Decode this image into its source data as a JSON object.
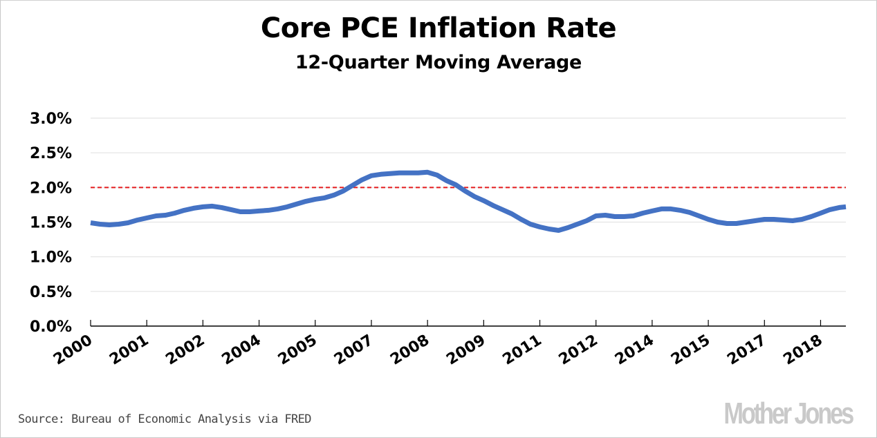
{
  "chart_data": {
    "type": "line",
    "title": "Core PCE Inflation Rate",
    "subtitle": "12-Quarter Moving Average",
    "xlabel": "",
    "ylabel": "",
    "ylim": [
      0,
      3.0
    ],
    "y_ticks": [
      0.0,
      0.5,
      1.0,
      1.5,
      2.0,
      2.5,
      3.0
    ],
    "y_tick_labels": [
      "0.0%",
      "0.5%",
      "1.0%",
      "1.5%",
      "2.0%",
      "2.5%",
      "3.0%"
    ],
    "x_tick_labels": [
      "2000",
      "2001",
      "2002",
      "2004",
      "2005",
      "2007",
      "2008",
      "2009",
      "2011",
      "2012",
      "2014",
      "2015",
      "2017",
      "2018"
    ],
    "x_tick_every_n_quarters": 6,
    "x_unit": "quarter index",
    "grid": true,
    "reference_line": {
      "value": 2.0,
      "style": "dashed",
      "color": "#e31a1c"
    },
    "series": [
      {
        "name": "Core PCE inflation, 12-quarter moving average (%)",
        "color": "#4472c4",
        "x": [
          0,
          1,
          2,
          3,
          4,
          5,
          6,
          7,
          8,
          9,
          10,
          11,
          12,
          13,
          14,
          15,
          16,
          17,
          18,
          19,
          20,
          21,
          22,
          23,
          24,
          25,
          26,
          27,
          28,
          29,
          30,
          31,
          32,
          33,
          34,
          35,
          36,
          37,
          38,
          39,
          40,
          41,
          42,
          43,
          44,
          45,
          46,
          47,
          48,
          49,
          50,
          51,
          52,
          53,
          54,
          55,
          56,
          57,
          58,
          59,
          60,
          61,
          62,
          63,
          64,
          65,
          66,
          67,
          68,
          69,
          70,
          71,
          72,
          73,
          74,
          75,
          76,
          77,
          78,
          79,
          80,
          80.7
        ],
        "values": [
          1.49,
          1.47,
          1.46,
          1.47,
          1.49,
          1.53,
          1.56,
          1.59,
          1.6,
          1.63,
          1.67,
          1.7,
          1.72,
          1.73,
          1.71,
          1.68,
          1.65,
          1.65,
          1.66,
          1.67,
          1.69,
          1.72,
          1.76,
          1.8,
          1.83,
          1.85,
          1.89,
          1.95,
          2.03,
          2.11,
          2.17,
          2.19,
          2.2,
          2.21,
          2.21,
          2.21,
          2.22,
          2.18,
          2.1,
          2.04,
          1.95,
          1.87,
          1.81,
          1.74,
          1.68,
          1.62,
          1.54,
          1.47,
          1.43,
          1.4,
          1.38,
          1.42,
          1.47,
          1.52,
          1.59,
          1.6,
          1.58,
          1.58,
          1.59,
          1.63,
          1.66,
          1.69,
          1.69,
          1.67,
          1.64,
          1.59,
          1.54,
          1.5,
          1.48,
          1.48,
          1.5,
          1.52,
          1.54,
          1.54,
          1.53,
          1.52,
          1.54,
          1.58,
          1.63,
          1.68,
          1.71,
          1.72
        ]
      }
    ]
  },
  "footer": {
    "source": "Source: Bureau of Economic Analysis via FRED",
    "brand": "Mother Jones"
  }
}
